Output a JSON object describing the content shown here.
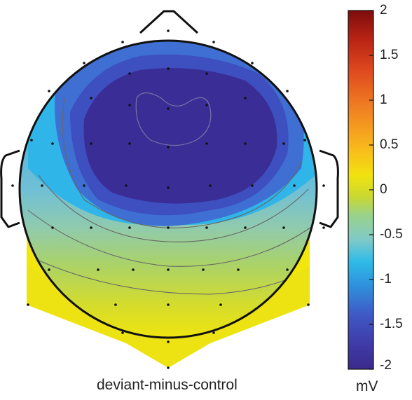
{
  "map_label": "deviant-minus-control",
  "colorbar": {
    "unit": "mV",
    "min": -2,
    "max": 2,
    "ticks": [
      "2",
      "1.5",
      "1",
      "0.5",
      "0",
      "-0.5",
      "-1",
      "-1.5",
      "-2"
    ],
    "colormap": [
      "#3b2a8a",
      "#3f3ba8",
      "#3f58c4",
      "#2f8fdc",
      "#2fbbe8",
      "#7fc9c8",
      "#9ad28a",
      "#c8d832",
      "#f2e20f",
      "#f8c21a",
      "#f6a21f",
      "#ee7a22",
      "#e04a1f",
      "#b82414",
      "#7e0c0c"
    ]
  },
  "colors": {
    "outline": "#111111",
    "contour": "#666666",
    "electrode": "#111111"
  }
}
